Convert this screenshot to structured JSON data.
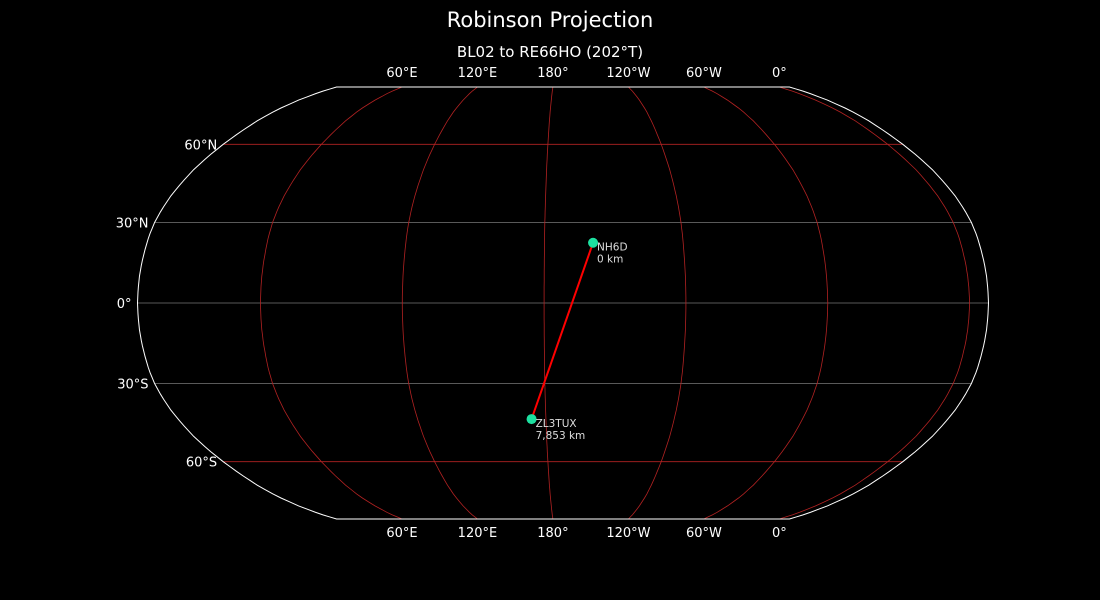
{
  "title": "Robinson Projection",
  "subtitle": "BL02 to RE66HO (202°T)",
  "map": {
    "projection": "Robinson",
    "central_longitude": -172,
    "background": "#000000",
    "outline_color": "#ffffff",
    "coastline_color": "#888888",
    "gridline_red": "#b22222",
    "gridline_gray": "#777777",
    "path_color": "#ff0000",
    "marker_color": "#1de0a0",
    "lon_tick_labels": [
      {
        "lon": 60,
        "label": "60°E"
      },
      {
        "lon": 120,
        "label": "120°E"
      },
      {
        "lon": 180,
        "label": "180°"
      },
      {
        "lon": -120,
        "label": "120°W"
      },
      {
        "lon": -60,
        "label": "60°W"
      },
      {
        "lon": 0,
        "label": "0°"
      }
    ],
    "lat_tick_labels": [
      {
        "lat": 60,
        "label": "60°N"
      },
      {
        "lat": 30,
        "label": "30°N"
      },
      {
        "lat": 0,
        "label": "0°"
      },
      {
        "lat": -30,
        "label": "30°S"
      },
      {
        "lat": -60,
        "label": "60°S"
      }
    ],
    "stations": [
      {
        "call": "NH6D",
        "distance": "0 km",
        "lat": 22.5,
        "lon": -159
      },
      {
        "call": "ZL3TUX",
        "distance": "7,853 km",
        "lat": -43.4,
        "lon": 173.3
      }
    ]
  }
}
